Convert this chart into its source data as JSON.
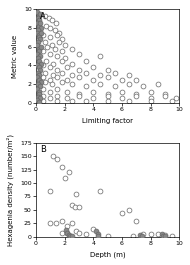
{
  "plot_A": {
    "label": "A",
    "xlabel": "Limiting factor",
    "ylabel": "Metric value",
    "xlim": [
      0,
      10
    ],
    "ylim": [
      0,
      10
    ],
    "xticks": [
      0,
      2,
      4,
      6,
      8,
      10
    ],
    "yticks": [
      0,
      2,
      4,
      6,
      8,
      10
    ],
    "filled_points": [
      [
        0.1,
        9.7
      ],
      [
        0.2,
        9.3
      ],
      [
        0.3,
        9.5
      ],
      [
        0.15,
        9.0
      ],
      [
        0.25,
        8.8
      ],
      [
        0.1,
        8.5
      ],
      [
        0.2,
        8.2
      ],
      [
        0.3,
        8.5
      ],
      [
        0.35,
        8.0
      ],
      [
        0.15,
        7.8
      ],
      [
        0.1,
        7.5
      ],
      [
        0.25,
        7.2
      ],
      [
        0.35,
        7.5
      ],
      [
        0.2,
        7.0
      ],
      [
        0.3,
        6.8
      ],
      [
        0.15,
        6.5
      ],
      [
        0.1,
        6.2
      ],
      [
        0.25,
        5.8
      ],
      [
        0.35,
        6.0
      ],
      [
        0.2,
        5.5
      ],
      [
        0.1,
        5.2
      ],
      [
        0.3,
        5.0
      ],
      [
        0.15,
        4.8
      ],
      [
        0.25,
        4.5
      ],
      [
        0.35,
        4.2
      ],
      [
        0.1,
        4.0
      ],
      [
        0.2,
        3.8
      ],
      [
        0.3,
        3.5
      ],
      [
        0.15,
        3.2
      ],
      [
        0.25,
        3.0
      ],
      [
        0.1,
        2.8
      ],
      [
        0.2,
        2.5
      ],
      [
        0.35,
        2.2
      ],
      [
        0.15,
        2.0
      ],
      [
        0.3,
        1.8
      ],
      [
        0.1,
        1.5
      ],
      [
        0.2,
        1.2
      ],
      [
        0.25,
        1.0
      ],
      [
        0.15,
        0.7
      ],
      [
        0.3,
        0.5
      ],
      [
        0.1,
        0.3
      ],
      [
        0.2,
        0.1
      ]
    ],
    "open_points": [
      [
        0.6,
        9.2
      ],
      [
        0.9,
        9.0
      ],
      [
        1.1,
        8.8
      ],
      [
        1.4,
        8.5
      ],
      [
        0.7,
        8.2
      ],
      [
        1.0,
        8.0
      ],
      [
        1.3,
        7.8
      ],
      [
        1.6,
        7.5
      ],
      [
        0.5,
        7.2
      ],
      [
        1.0,
        7.0
      ],
      [
        1.5,
        7.2
      ],
      [
        1.8,
        6.8
      ],
      [
        0.6,
        6.5
      ],
      [
        1.1,
        6.2
      ],
      [
        1.6,
        6.5
      ],
      [
        2.0,
        6.2
      ],
      [
        0.8,
        6.0
      ],
      [
        1.3,
        5.8
      ],
      [
        1.8,
        5.5
      ],
      [
        2.5,
        5.8
      ],
      [
        0.5,
        5.5
      ],
      [
        1.0,
        5.2
      ],
      [
        1.5,
        5.0
      ],
      [
        2.0,
        4.8
      ],
      [
        3.0,
        5.2
      ],
      [
        0.7,
        4.5
      ],
      [
        1.2,
        4.2
      ],
      [
        1.8,
        4.5
      ],
      [
        2.5,
        4.2
      ],
      [
        3.5,
        4.5
      ],
      [
        4.5,
        5.0
      ],
      [
        0.5,
        4.0
      ],
      [
        1.0,
        3.8
      ],
      [
        1.5,
        3.5
      ],
      [
        2.2,
        3.8
      ],
      [
        3.0,
        3.5
      ],
      [
        4.0,
        3.8
      ],
      [
        5.0,
        3.5
      ],
      [
        0.6,
        3.2
      ],
      [
        1.2,
        3.0
      ],
      [
        1.8,
        3.2
      ],
      [
        2.5,
        3.0
      ],
      [
        3.5,
        3.2
      ],
      [
        4.5,
        3.0
      ],
      [
        5.5,
        3.2
      ],
      [
        6.5,
        3.0
      ],
      [
        0.5,
        2.8
      ],
      [
        1.0,
        2.5
      ],
      [
        1.5,
        2.8
      ],
      [
        2.2,
        2.5
      ],
      [
        3.0,
        2.8
      ],
      [
        4.0,
        2.5
      ],
      [
        5.0,
        2.8
      ],
      [
        6.0,
        2.5
      ],
      [
        7.0,
        2.5
      ],
      [
        0.6,
        2.2
      ],
      [
        1.1,
        2.0
      ],
      [
        1.8,
        2.2
      ],
      [
        2.5,
        2.0
      ],
      [
        3.5,
        1.8
      ],
      [
        4.5,
        2.0
      ],
      [
        5.5,
        1.8
      ],
      [
        6.5,
        2.0
      ],
      [
        7.5,
        1.8
      ],
      [
        8.5,
        2.0
      ],
      [
        0.5,
        1.5
      ],
      [
        1.0,
        1.2
      ],
      [
        1.5,
        1.5
      ],
      [
        2.2,
        1.2
      ],
      [
        3.0,
        1.0
      ],
      [
        4.0,
        1.2
      ],
      [
        5.0,
        1.0
      ],
      [
        6.0,
        1.2
      ],
      [
        7.0,
        1.0
      ],
      [
        8.0,
        1.2
      ],
      [
        9.0,
        1.0
      ],
      [
        0.5,
        0.8
      ],
      [
        1.0,
        0.5
      ],
      [
        1.5,
        0.8
      ],
      [
        2.2,
        0.5
      ],
      [
        3.0,
        0.8
      ],
      [
        4.0,
        0.5
      ],
      [
        5.0,
        0.8
      ],
      [
        6.0,
        0.5
      ],
      [
        7.0,
        0.8
      ],
      [
        8.0,
        0.5
      ],
      [
        9.0,
        0.8
      ],
      [
        9.8,
        0.5
      ],
      [
        0.5,
        0.2
      ],
      [
        1.5,
        0.2
      ],
      [
        2.5,
        0.2
      ],
      [
        3.5,
        0.2
      ],
      [
        5.0,
        0.2
      ],
      [
        6.5,
        0.2
      ],
      [
        8.0,
        0.2
      ],
      [
        9.5,
        0.2
      ]
    ]
  },
  "plot_B": {
    "label": "B",
    "xlabel": "Depth (m)",
    "ylabel": "Hexagenia density (number/m²)",
    "xlim": [
      0,
      10
    ],
    "ylim": [
      0,
      175
    ],
    "xticks": [
      0,
      2,
      4,
      6,
      8,
      10
    ],
    "yticks": [
      0,
      25,
      50,
      75,
      100,
      125,
      150,
      175
    ],
    "filled_points": [
      [
        2.1,
        12
      ],
      [
        2.2,
        7
      ],
      [
        2.3,
        4
      ],
      [
        2.4,
        2
      ],
      [
        2.5,
        1
      ],
      [
        4.2,
        10
      ],
      [
        4.3,
        5
      ],
      [
        4.35,
        2
      ],
      [
        7.3,
        3
      ],
      [
        7.4,
        1
      ],
      [
        8.8,
        5
      ],
      [
        8.9,
        2
      ],
      [
        9.0,
        1
      ]
    ],
    "open_points": [
      [
        1.0,
        85
      ],
      [
        1.2,
        150
      ],
      [
        1.5,
        145
      ],
      [
        1.8,
        130
      ],
      [
        2.0,
        110
      ],
      [
        2.3,
        120
      ],
      [
        2.5,
        60
      ],
      [
        2.7,
        55
      ],
      [
        2.8,
        80
      ],
      [
        3.0,
        55
      ],
      [
        1.0,
        25
      ],
      [
        1.4,
        25
      ],
      [
        1.8,
        30
      ],
      [
        2.2,
        20
      ],
      [
        2.5,
        25
      ],
      [
        2.8,
        10
      ],
      [
        3.0,
        8
      ],
      [
        4.0,
        15
      ],
      [
        4.5,
        85
      ],
      [
        6.0,
        45
      ],
      [
        6.5,
        50
      ],
      [
        7.0,
        30
      ],
      [
        7.5,
        5
      ],
      [
        8.0,
        5
      ],
      [
        8.5,
        5
      ],
      [
        9.0,
        3
      ],
      [
        1.8,
        8
      ],
      [
        2.2,
        8
      ],
      [
        3.5,
        5
      ],
      [
        5.0,
        2
      ],
      [
        6.8,
        2
      ],
      [
        9.5,
        2
      ]
    ]
  },
  "marker_size": 3.5,
  "open_color": "white",
  "filled_color": "#888888",
  "edge_color": "#666666",
  "bg_color": "white"
}
